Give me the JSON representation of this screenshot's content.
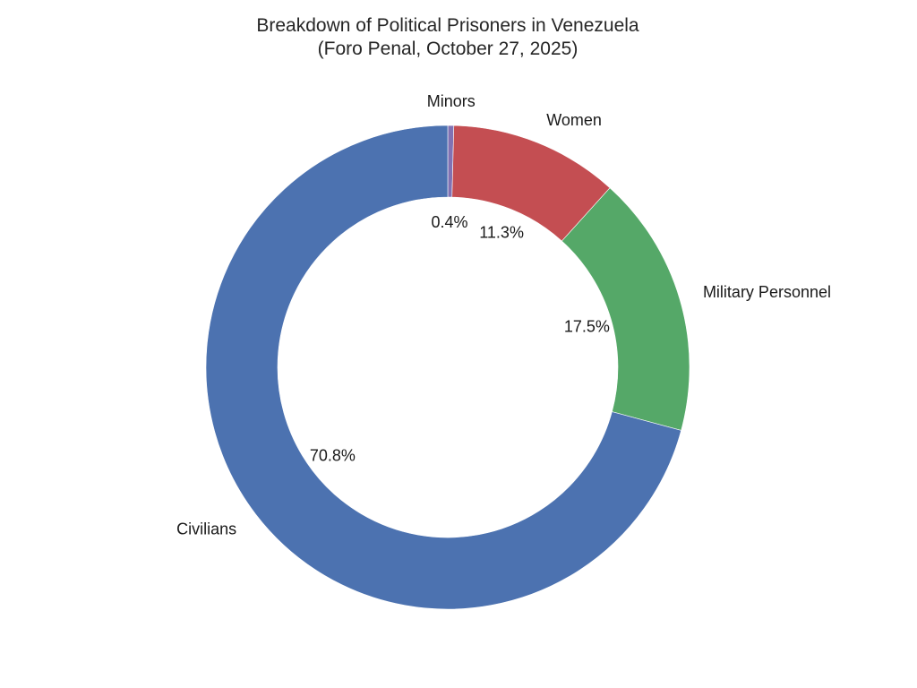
{
  "chart_data": {
    "type": "pie",
    "donut": true,
    "title": "Breakdown of Political Prisoners in Venezuela",
    "subtitle": "(Foro Penal, October 27, 2025)",
    "slices": [
      {
        "label": "Minors",
        "value": 0.4,
        "percent_label": "0.4%",
        "color": "#8172b3"
      },
      {
        "label": "Women",
        "value": 11.3,
        "percent_label": "11.3%",
        "color": "#c44e52"
      },
      {
        "label": "Military Personnel",
        "value": 17.5,
        "percent_label": "17.5%",
        "color": "#55a868"
      },
      {
        "label": "Civilians",
        "value": 70.8,
        "percent_label": "70.8%",
        "color": "#4c72b0"
      }
    ],
    "start_angle_deg": 90,
    "direction": "clockwise",
    "legend": "none"
  }
}
